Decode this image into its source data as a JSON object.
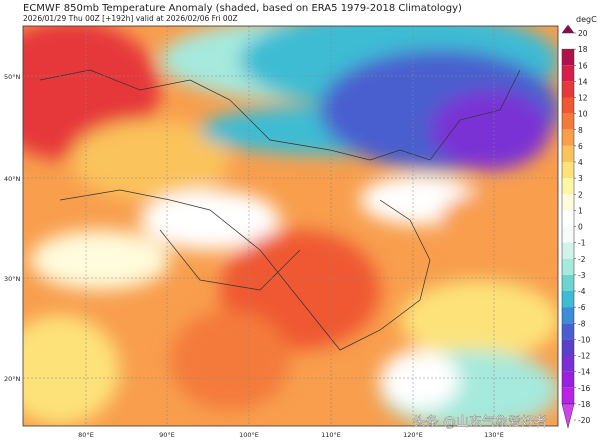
{
  "header": {
    "title": "ECMWF 850mb Temperature Anomaly (shaded, based on ERA5 1979-2018 Climatology)",
    "subtitle_left": "2026/01/29 Thu 00Z [+192h] valid at 2026/02/06 Fri 00Z"
  },
  "map": {
    "lat_labels": [
      "50°N",
      "40°N",
      "30°N",
      "20°N"
    ],
    "lon_labels": [
      "80°E",
      "90°E",
      "100°E",
      "110°E",
      "120°E",
      "130°E"
    ]
  },
  "colorbar": {
    "unit": "degC",
    "ticks": [
      20,
      18,
      16,
      14,
      12,
      10,
      8,
      6,
      4,
      3,
      2,
      1,
      0,
      -1,
      -2,
      -3,
      -4,
      -6,
      -8,
      -10,
      -12,
      -14,
      -16,
      -18,
      -20
    ],
    "colors": [
      "#8a0b4e",
      "#b0124b",
      "#d41f48",
      "#e6383a",
      "#ef5833",
      "#f47a3b",
      "#f89e4d",
      "#fbc35c",
      "#fde279",
      "#fff6a6",
      "#fffbdc",
      "#ffffff",
      "#f4fbf9",
      "#d2f3ec",
      "#a6e9dd",
      "#6dd4cf",
      "#3dbcd4",
      "#3a8ed7",
      "#4a5fcf",
      "#5a40c8",
      "#7a30d5",
      "#9a20df",
      "#b822e9",
      "#d044f0"
    ]
  },
  "watermark": "头条 @山东气象爱好者"
}
